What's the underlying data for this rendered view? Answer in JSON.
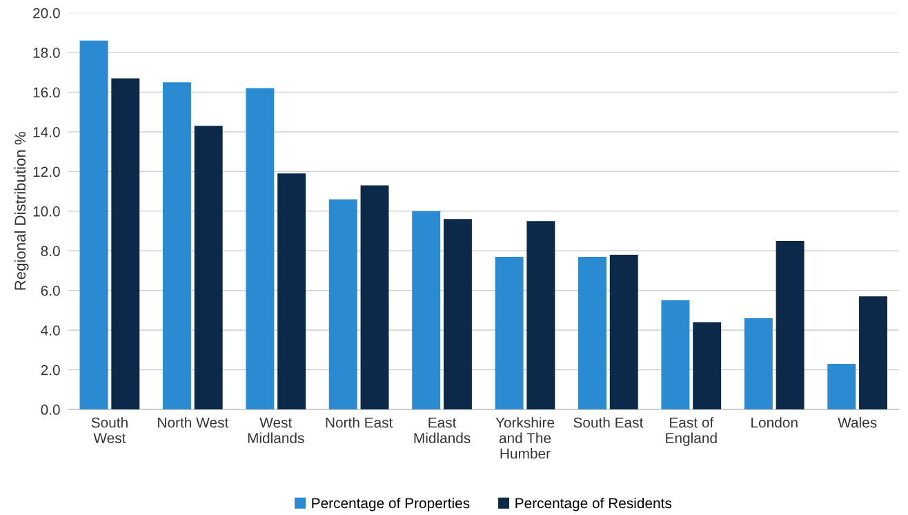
{
  "chart_data": {
    "type": "bar",
    "ylabel": "Regional Distribution %",
    "categories": [
      "South\nWest",
      "North West",
      "West\nMidlands",
      "North East",
      "East\nMidlands",
      "Yorkshire\nand The\nHumber",
      "South East",
      "East of\nEngland",
      "London",
      "Wales"
    ],
    "series": [
      {
        "name": "Percentage of Properties",
        "color": "#2a8ad2",
        "values": [
          18.6,
          16.5,
          16.2,
          10.6,
          10.0,
          7.7,
          7.7,
          5.5,
          4.6,
          2.3
        ]
      },
      {
        "name": "Percentage of Residents",
        "color": "#0c2949",
        "values": [
          16.7,
          14.3,
          11.9,
          11.3,
          9.6,
          9.5,
          7.8,
          4.4,
          8.5,
          5.7
        ]
      }
    ],
    "ylim": [
      0,
      20
    ],
    "yticks": [
      {
        "value": 0,
        "label": "0.0"
      },
      {
        "value": 2,
        "label": "2.0"
      },
      {
        "value": 4,
        "label": "4.0"
      },
      {
        "value": 6,
        "label": "6.0"
      },
      {
        "value": 8,
        "label": "8.0"
      },
      {
        "value": 10,
        "label": "10.0"
      },
      {
        "value": 12,
        "label": "12.0"
      },
      {
        "value": 14,
        "label": "14.0"
      },
      {
        "value": 16,
        "label": "16.0"
      },
      {
        "value": 18,
        "label": "18.0"
      },
      {
        "value": 20,
        "label": "20.0"
      }
    ],
    "grid": "y",
    "legend": "bottom"
  }
}
